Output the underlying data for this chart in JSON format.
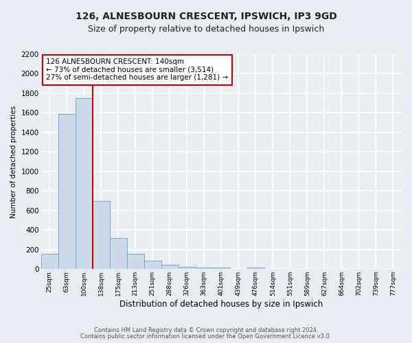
{
  "title": "126, ALNESBOURN CRESCENT, IPSWICH, IP3 9GD",
  "subtitle": "Size of property relative to detached houses in Ipswich",
  "xlabel": "Distribution of detached houses by size in Ipswich",
  "ylabel": "Number of detached properties",
  "bar_labels": [
    "25sqm",
    "63sqm",
    "100sqm",
    "138sqm",
    "175sqm",
    "213sqm",
    "251sqm",
    "288sqm",
    "326sqm",
    "363sqm",
    "401sqm",
    "439sqm",
    "476sqm",
    "514sqm",
    "551sqm",
    "589sqm",
    "627sqm",
    "664sqm",
    "702sqm",
    "739sqm",
    "777sqm"
  ],
  "bar_values": [
    160,
    1590,
    1750,
    700,
    315,
    155,
    85,
    45,
    20,
    15,
    15,
    0,
    15,
    0,
    0,
    0,
    0,
    0,
    0,
    0,
    0
  ],
  "bar_color": "#ccdaea",
  "bar_edge_color": "#6aaad4",
  "vline_color": "#cc0000",
  "annotation_text": "126 ALNESBOURN CRESCENT: 140sqm\n← 73% of detached houses are smaller (3,514)\n27% of semi-detached houses are larger (1,281) →",
  "annotation_box_color": "#ffffff",
  "annotation_box_edge": "#cc0000",
  "ylim": [
    0,
    2200
  ],
  "yticks": [
    0,
    200,
    400,
    600,
    800,
    1000,
    1200,
    1400,
    1600,
    1800,
    2000,
    2200
  ],
  "footer1": "Contains HM Land Registry data © Crown copyright and database right 2024.",
  "footer2": "Contains public sector information licensed under the Open Government Licence v3.0.",
  "bg_color": "#e8eef4",
  "plot_bg_color": "#e8eef4",
  "grid_color": "#ffffff",
  "title_fontsize": 10,
  "subtitle_fontsize": 9,
  "annotation_fontsize": 7.5
}
